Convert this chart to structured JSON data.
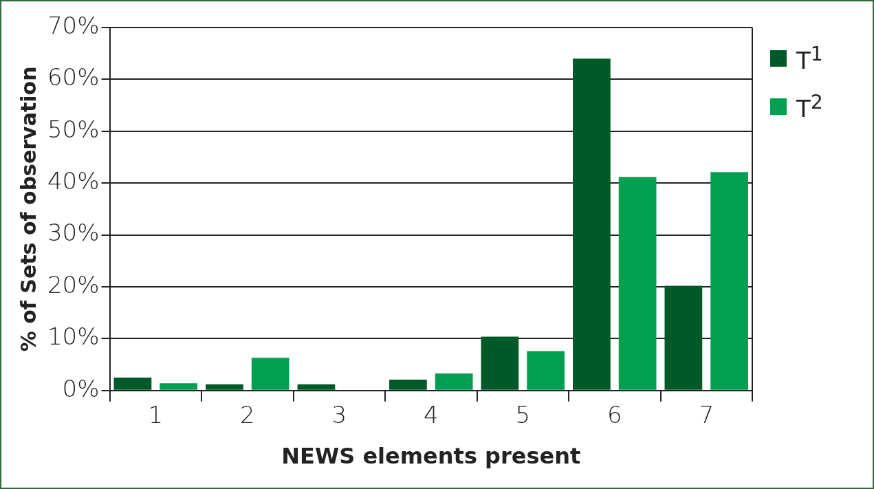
{
  "chart_data": {
    "type": "bar",
    "xlabel": "NEWS elements present",
    "ylabel": "% of Sets of observation",
    "categories": [
      "1",
      "2",
      "3",
      "4",
      "5",
      "6",
      "7"
    ],
    "series": [
      {
        "name": "T$^{1}$",
        "color": "#005a28",
        "values": [
          2.5,
          1.2,
          1.2,
          2.1,
          10.4,
          64,
          20.2
        ]
      },
      {
        "name": "T$^{2}$",
        "color": "#00a050",
        "values": [
          1.4,
          6.3,
          0,
          3.3,
          7.6,
          41.2,
          42.1
        ]
      }
    ],
    "ylim": [
      0,
      70
    ],
    "yticks": [
      {
        "value": 0,
        "label": "0%"
      },
      {
        "value": 10,
        "label": "10%"
      },
      {
        "value": 20,
        "label": "20%"
      },
      {
        "value": 30,
        "label": "30%"
      },
      {
        "value": 40,
        "label": "40%"
      },
      {
        "value": 50,
        "label": "50%"
      },
      {
        "value": 60,
        "label": "60%"
      },
      {
        "value": 70,
        "label": "70%"
      }
    ],
    "grid": "y",
    "legend": "top right"
  }
}
